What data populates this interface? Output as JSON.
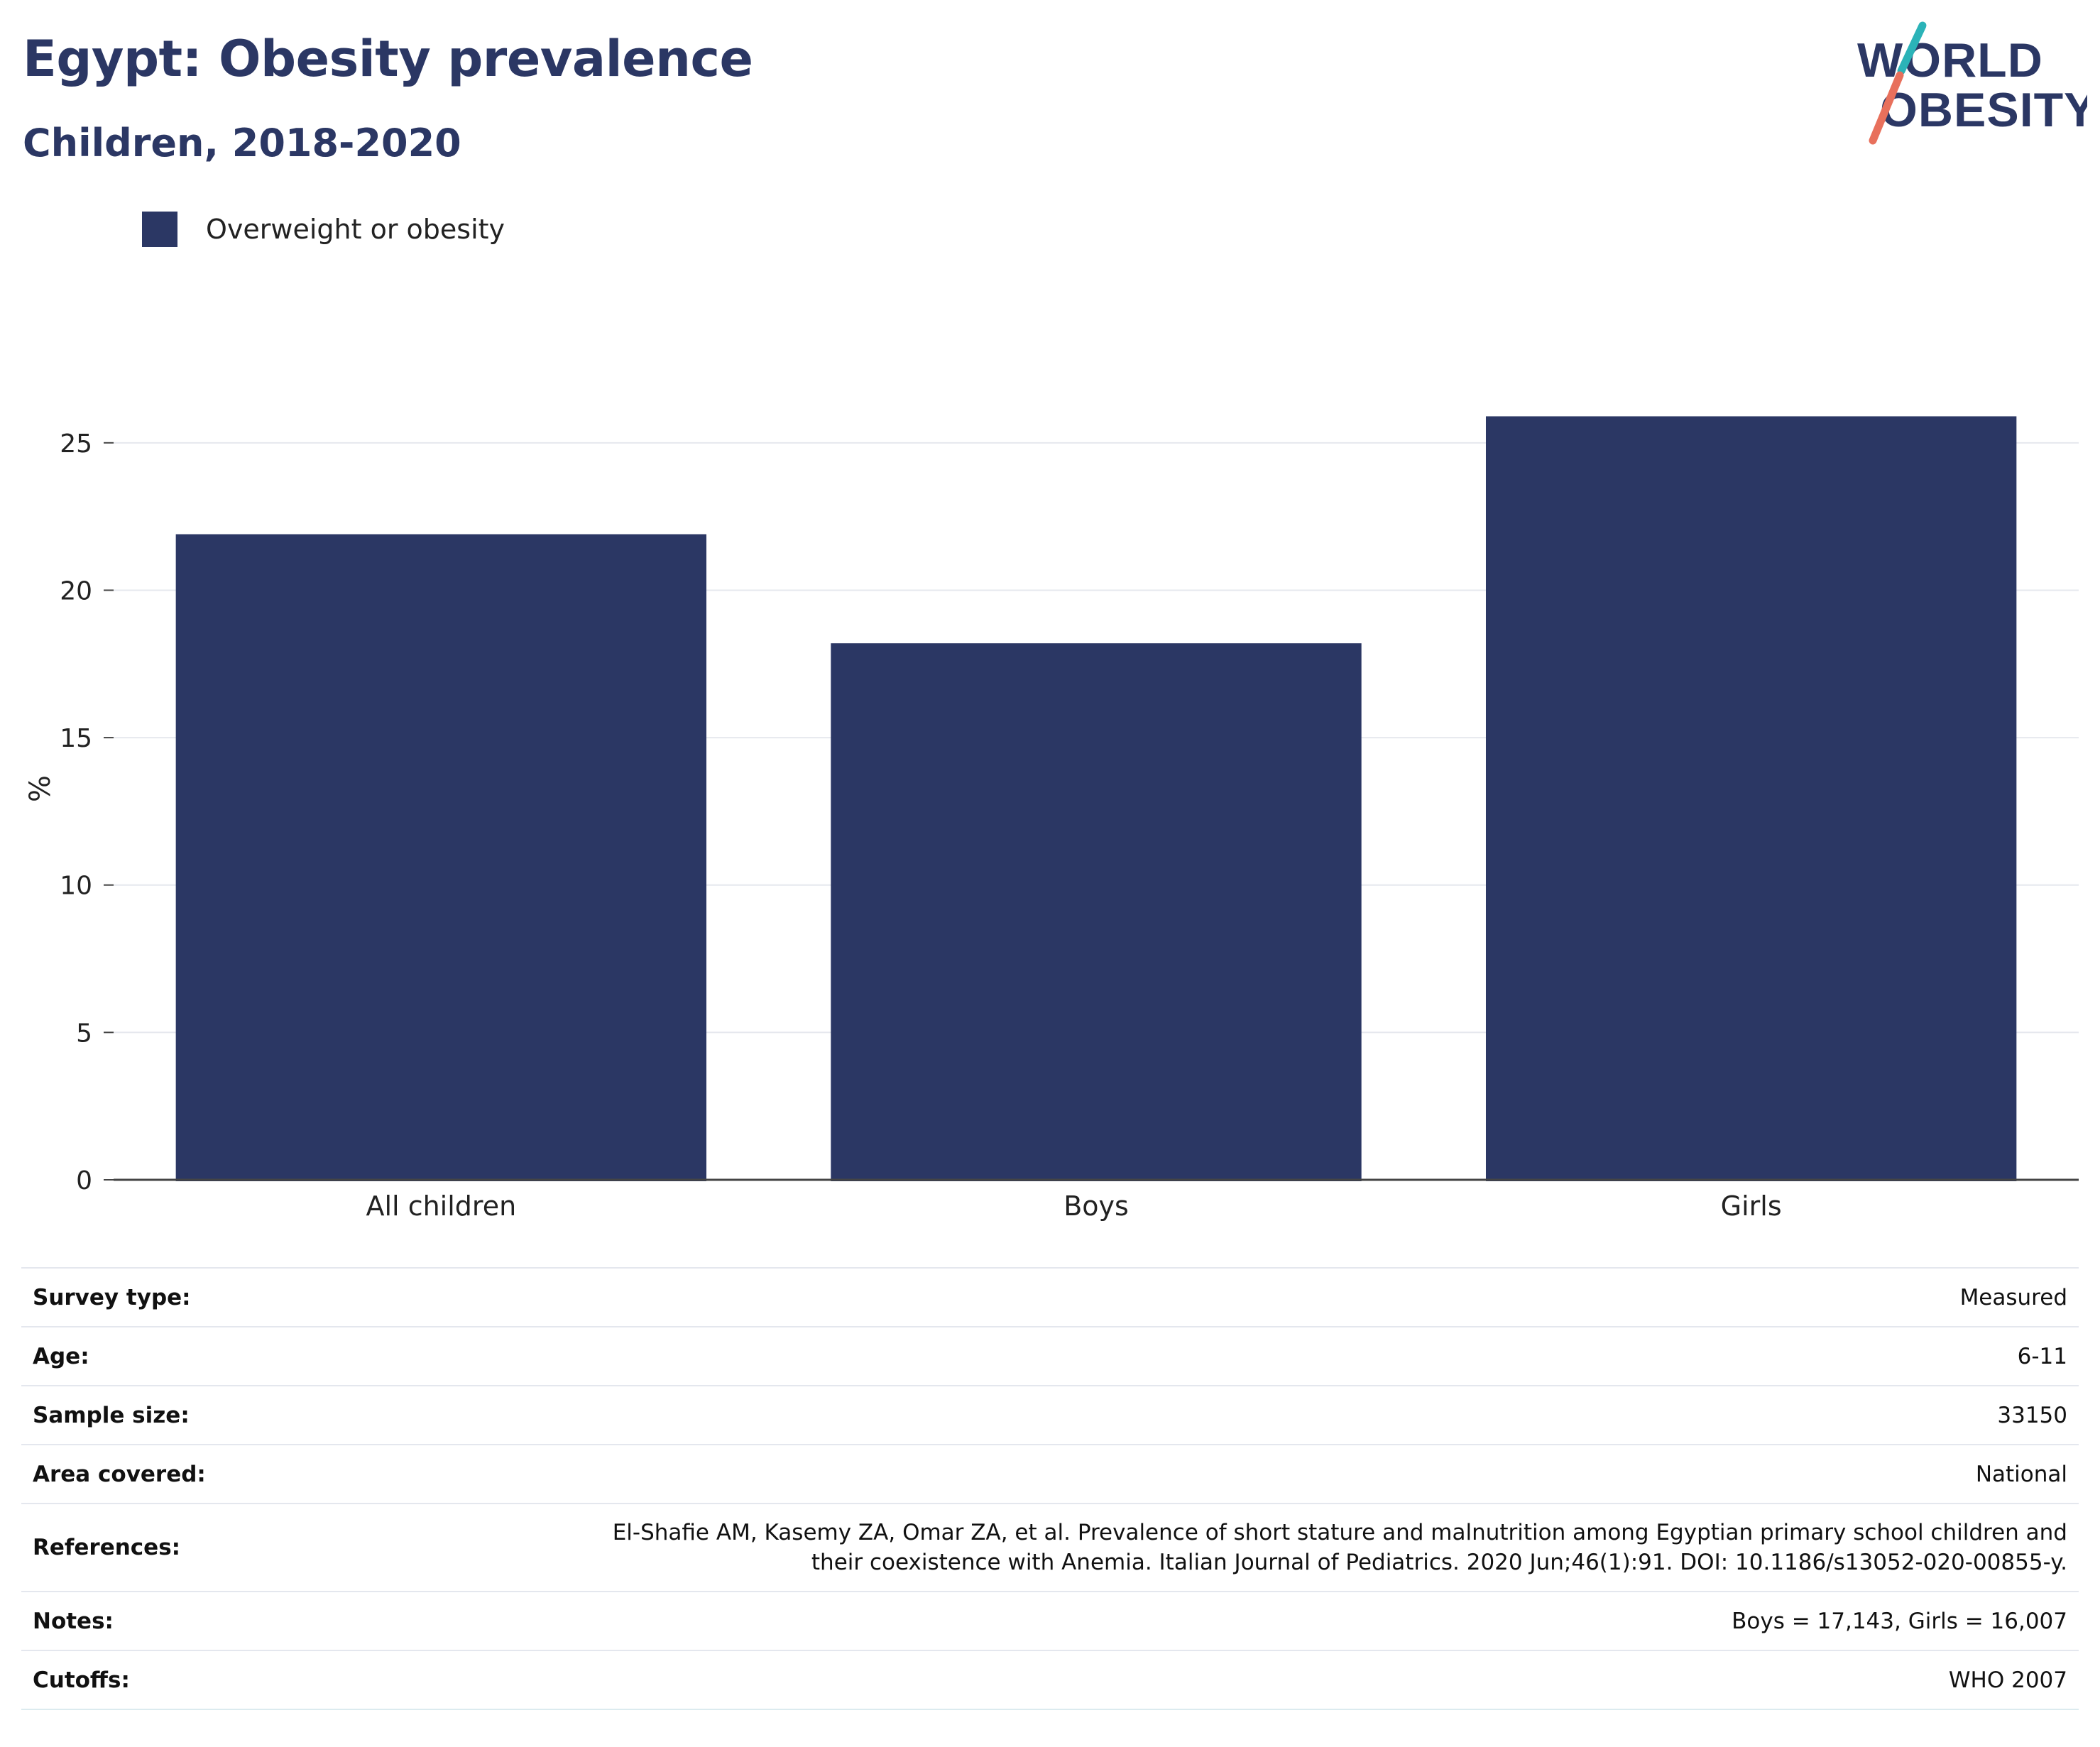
{
  "title": "Egypt: Obesity prevalence",
  "subtitle": "Children, 2018-2020",
  "logo": {
    "line1": "WORLD",
    "line2": "OBESITY"
  },
  "colors": {
    "bar": "#2b3764",
    "text_dark": "#2b3764",
    "logo_teal": "#2bb3b8",
    "logo_coral": "#e8705c"
  },
  "chart_data": {
    "type": "bar",
    "categories": [
      "All children",
      "Boys",
      "Girls"
    ],
    "series": [
      {
        "name": "Overweight or obesity",
        "values": [
          21.9,
          18.2,
          25.9
        ]
      }
    ],
    "ylabel": "%",
    "xlabel": "",
    "ylim": [
      0,
      27.5
    ],
    "yticks": [
      0,
      5,
      10,
      15,
      20,
      25
    ],
    "grid": true,
    "legend_position": "top-left"
  },
  "info": {
    "rows": [
      {
        "label": "Survey type:",
        "value": "Measured"
      },
      {
        "label": "Age:",
        "value": "6-11"
      },
      {
        "label": "Sample size:",
        "value": "33150"
      },
      {
        "label": "Area covered:",
        "value": "National"
      },
      {
        "label": "References:",
        "value_lines": [
          "El-Shafie AM, Kasemy ZA, Omar ZA, et al. Prevalence of short stature and malnutrition among Egyptian primary school children and",
          "their coexistence with Anemia. Italian Journal of Pediatrics. 2020 Jun;46(1):91. DOI: 10.1186/s13052-020-00855-y."
        ]
      },
      {
        "label": "Notes:",
        "value": "Boys = 17,143, Girls = 16,007"
      },
      {
        "label": "Cutoffs:",
        "value": "WHO 2007"
      }
    ]
  }
}
